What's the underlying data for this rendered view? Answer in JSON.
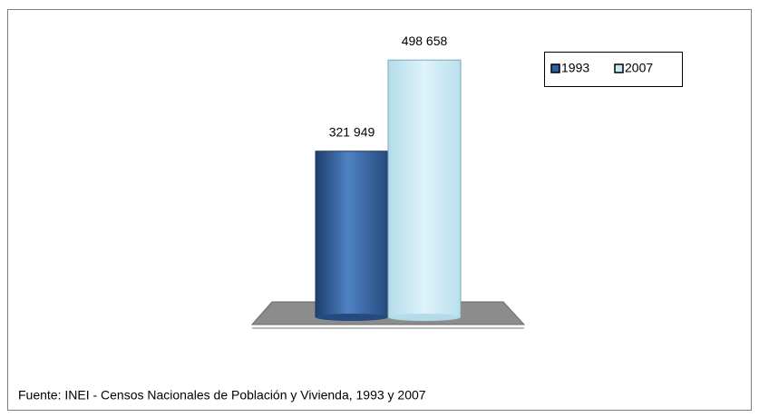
{
  "chart_data": {
    "type": "bar3d",
    "categories": [
      null
    ],
    "series": [
      {
        "name": "1993",
        "color": "#2f5f9e",
        "values": [
          321949
        ],
        "value_labels": [
          "321 949"
        ]
      },
      {
        "name": "2007",
        "color": "#c6e7f3",
        "values": [
          498658
        ],
        "value_labels": [
          "498 658"
        ]
      }
    ],
    "ylim": [
      0,
      550000
    ],
    "legend": "top-right",
    "note": "Fuente: INEI - Censos Nacionales de Población y Vivienda, 1993 y  2007"
  }
}
